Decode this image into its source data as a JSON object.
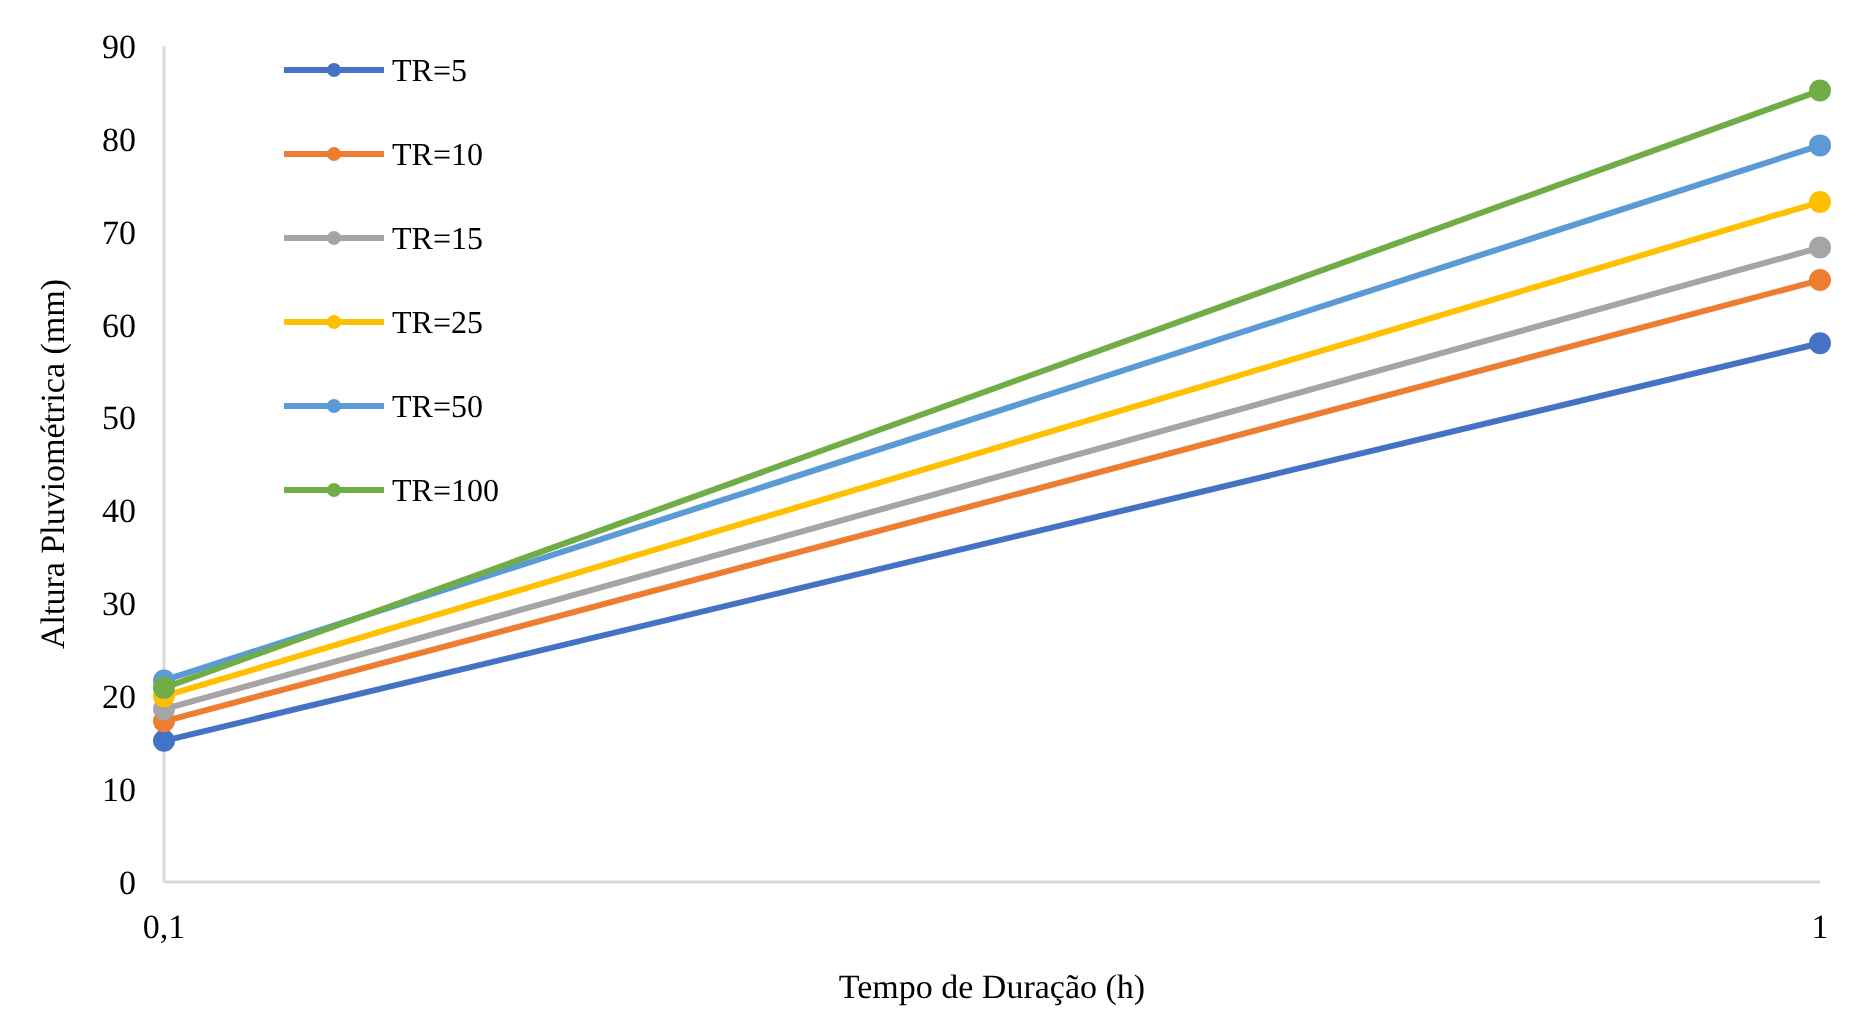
{
  "chart_data": {
    "type": "line",
    "xlabel": "Tempo de Duração (h)",
    "ylabel": "Altura Pluviométrica  (mm)",
    "x": [
      0.1,
      1
    ],
    "xlim": [
      0.1,
      1
    ],
    "xticks": [
      {
        "value": 0.1,
        "label": "0,1"
      },
      1
    ],
    "ylim": [
      0,
      90
    ],
    "yticks": [
      0,
      10,
      20,
      30,
      40,
      50,
      60,
      70,
      80,
      90
    ],
    "grid": false,
    "legend": "top left",
    "marker": "circle",
    "line_style": "solid",
    "series": [
      {
        "name": "TR=5",
        "color": "#4472c4",
        "values": [
          15.2,
          58.0
        ]
      },
      {
        "name": "TR=10",
        "color": "#ed7d31",
        "values": [
          17.3,
          64.8
        ]
      },
      {
        "name": "TR=15",
        "color": "#a5a5a5",
        "values": [
          18.6,
          68.3
        ]
      },
      {
        "name": "TR=25",
        "color": "#ffc000",
        "values": [
          20.0,
          73.2
        ]
      },
      {
        "name": "TR=50",
        "color": "#5b9bd5",
        "values": [
          21.7,
          79.3
        ]
      },
      {
        "name": "TR=100",
        "color": "#70ad47",
        "values": [
          20.9,
          85.2
        ]
      }
    ]
  }
}
